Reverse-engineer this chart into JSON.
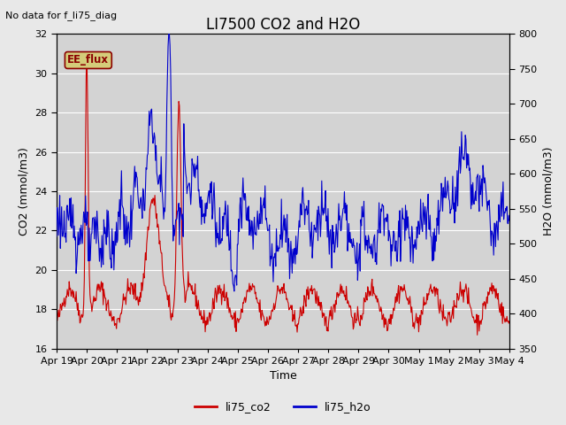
{
  "title": "LI7500 CO2 and H2O",
  "top_left_text": "No data for f_li75_diag",
  "xlabel": "Time",
  "ylabel_left": "CO2 (mmol/m3)",
  "ylabel_right": "H2O (mmol/m3)",
  "ylim_left": [
    16,
    32
  ],
  "ylim_right": [
    350,
    800
  ],
  "yticks_left": [
    16,
    18,
    20,
    22,
    24,
    26,
    28,
    30,
    32
  ],
  "yticks_right": [
    350,
    400,
    450,
    500,
    550,
    600,
    650,
    700,
    750,
    800
  ],
  "xtick_labels": [
    "Apr 19",
    "Apr 20",
    "Apr 21",
    "Apr 22",
    "Apr 23",
    "Apr 24",
    "Apr 25",
    "Apr 26",
    "Apr 27",
    "Apr 28",
    "Apr 29",
    "Apr 30",
    "May 1",
    "May 2",
    "May 3",
    "May 4"
  ],
  "legend_entries": [
    "li75_co2",
    "li75_h2o"
  ],
  "legend_colors": [
    "#cc0000",
    "#0000cc"
  ],
  "bg_color": "#e8e8e8",
  "plot_bg_color": "#d3d3d3",
  "ee_flux_box_color": "#d4cc7a",
  "ee_flux_text": "EE_flux",
  "grid_color": "#ffffff",
  "co2_color": "#cc0000",
  "h2o_color": "#0000cc",
  "title_fontsize": 12,
  "label_fontsize": 9,
  "tick_fontsize": 8
}
